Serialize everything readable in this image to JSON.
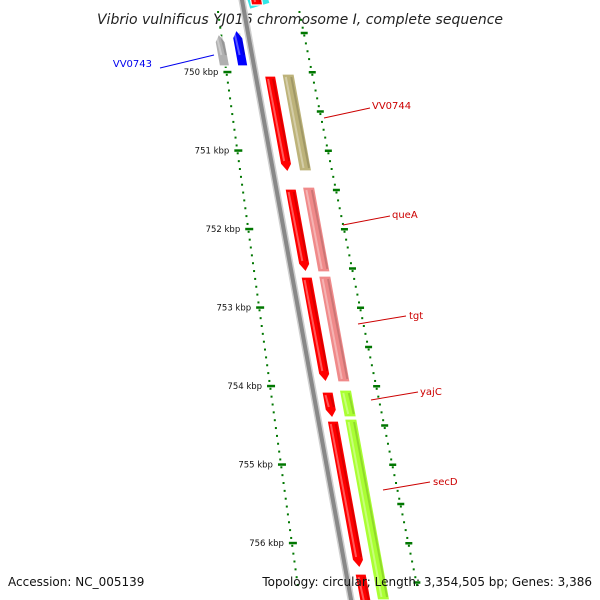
{
  "title": "Vibrio vulnificus YJ016 chromosome I, complete sequence",
  "footer": {
    "accession": "Accession: NC_005139",
    "summary": "Topology: circular; Length: 3,354,505 bp; Genes: 3,386"
  },
  "ticks": [
    {
      "label": "750 kbp",
      "kb": 750
    },
    {
      "label": "751 kbp",
      "kb": 751
    },
    {
      "label": "752 kbp",
      "kb": 752
    },
    {
      "label": "753 kbp",
      "kb": 753
    },
    {
      "label": "754 kbp",
      "kb": 754
    },
    {
      "label": "755 kbp",
      "kb": 755
    },
    {
      "label": "756 kbp",
      "kb": 756
    }
  ],
  "genes": [
    {
      "name": "VV0743",
      "color": "#0000ee"
    },
    {
      "name": "VV0744",
      "color": "#cc0000"
    },
    {
      "name": "queA",
      "color": "#cc0000"
    },
    {
      "name": "tgt",
      "color": "#cc0000"
    },
    {
      "name": "yajC",
      "color": "#cc0000"
    },
    {
      "name": "secD",
      "color": "#cc0000"
    }
  ],
  "colors": {
    "backbone": "#888888",
    "cds_forward": "#ff0000",
    "cds_reverse": "#0000ff",
    "cds_grey": "#b0b0b0",
    "cog_olive": "#bdb37a",
    "cog_pink": "#f08a8a",
    "cog_lime": "#aaff33",
    "cog_cyan": "#33e6e6",
    "tick_green": "#007700"
  }
}
